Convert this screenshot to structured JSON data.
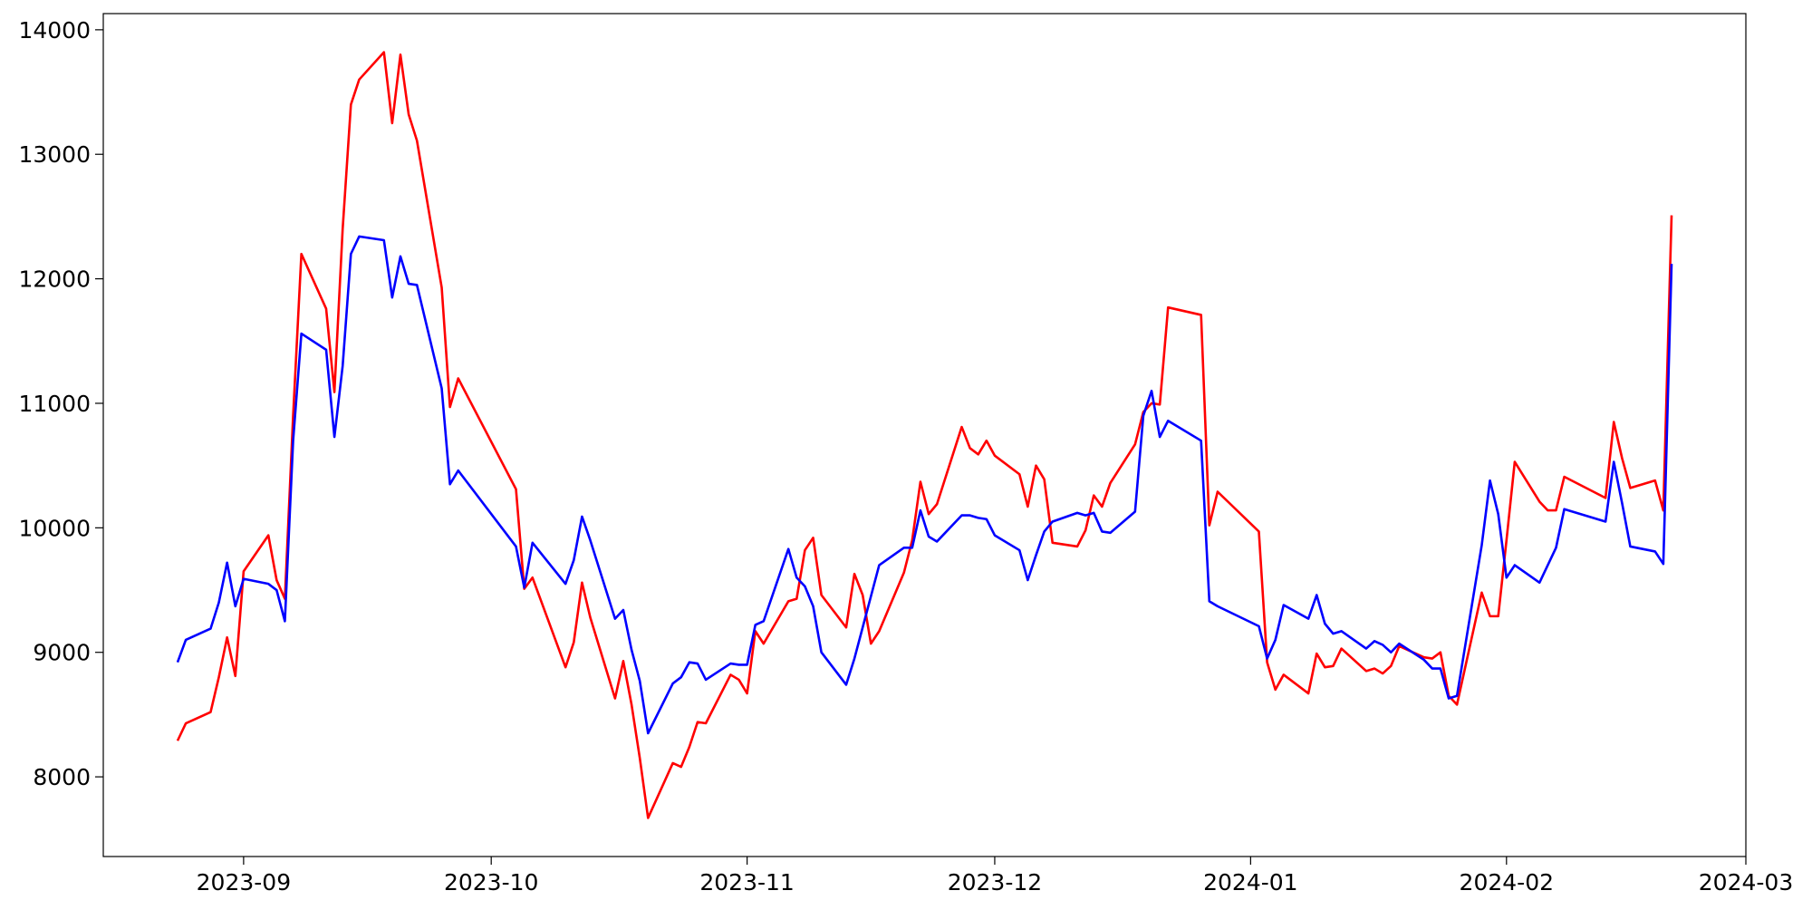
{
  "chart_data": {
    "type": "line",
    "x": [
      "2023-08-24",
      "2023-08-25",
      "2023-08-28",
      "2023-08-29",
      "2023-08-30",
      "2023-08-31",
      "2023-09-01",
      "2023-09-04",
      "2023-09-05",
      "2023-09-06",
      "2023-09-07",
      "2023-09-08",
      "2023-09-11",
      "2023-09-12",
      "2023-09-13",
      "2023-09-14",
      "2023-09-15",
      "2023-09-18",
      "2023-09-19",
      "2023-09-20",
      "2023-09-21",
      "2023-09-22",
      "2023-09-25",
      "2023-09-26",
      "2023-09-27",
      "2023-10-04",
      "2023-10-05",
      "2023-10-06",
      "2023-10-10",
      "2023-10-11",
      "2023-10-12",
      "2023-10-13",
      "2023-10-16",
      "2023-10-17",
      "2023-10-18",
      "2023-10-19",
      "2023-10-20",
      "2023-10-23",
      "2023-10-24",
      "2023-10-25",
      "2023-10-26",
      "2023-10-27",
      "2023-10-30",
      "2023-10-31",
      "2023-11-01",
      "2023-11-02",
      "2023-11-03",
      "2023-11-06",
      "2023-11-07",
      "2023-11-08",
      "2023-11-09",
      "2023-11-10",
      "2023-11-13",
      "2023-11-14",
      "2023-11-15",
      "2023-11-16",
      "2023-11-17",
      "2023-11-20",
      "2023-11-21",
      "2023-11-22",
      "2023-11-23",
      "2023-11-24",
      "2023-11-27",
      "2023-11-28",
      "2023-11-29",
      "2023-11-30",
      "2023-12-01",
      "2023-12-04",
      "2023-12-05",
      "2023-12-06",
      "2023-12-07",
      "2023-12-08",
      "2023-12-11",
      "2023-12-12",
      "2023-12-13",
      "2023-12-14",
      "2023-12-15",
      "2023-12-18",
      "2023-12-19",
      "2023-12-20",
      "2023-12-21",
      "2023-12-22",
      "2023-12-26",
      "2023-12-27",
      "2023-12-28",
      "2024-01-02",
      "2024-01-03",
      "2024-01-04",
      "2024-01-05",
      "2024-01-08",
      "2024-01-09",
      "2024-01-10",
      "2024-01-11",
      "2024-01-12",
      "2024-01-15",
      "2024-01-16",
      "2024-01-17",
      "2024-01-18",
      "2024-01-19",
      "2024-01-22",
      "2024-01-23",
      "2024-01-24",
      "2024-01-25",
      "2024-01-26",
      "2024-01-29",
      "2024-01-30",
      "2024-01-31",
      "2024-02-01",
      "2024-02-02",
      "2024-02-05",
      "2024-02-06",
      "2024-02-07",
      "2024-02-08",
      "2024-02-13",
      "2024-02-14",
      "2024-02-15",
      "2024-02-16",
      "2024-02-19",
      "2024-02-20",
      "2024-02-21"
    ],
    "series": [
      {
        "color": "#ff0000",
        "values": [
          8290,
          8430,
          8520,
          8800,
          9120,
          8810,
          9650,
          9940,
          9580,
          9430,
          10900,
          12200,
          11760,
          11090,
          12400,
          13400,
          13600,
          13820,
          13250,
          13800,
          13320,
          13110,
          11930,
          10970,
          11200,
          10310,
          9510,
          9600,
          8880,
          9080,
          9560,
          9280,
          8630,
          8930,
          8580,
          8150,
          7670,
          8110,
          8080,
          8240,
          8440,
          8430,
          8820,
          8780,
          8670,
          9170,
          9070,
          9410,
          9430,
          9820,
          9920,
          9460,
          9200,
          9630,
          9460,
          9070,
          9170,
          9640,
          9900,
          10370,
          10110,
          10190,
          10810,
          10640,
          10590,
          10700,
          10580,
          10430,
          10170,
          10500,
          10390,
          9880,
          9850,
          9980,
          10260,
          10170,
          10360,
          10670,
          10930,
          11000,
          10990,
          11770,
          11710,
          10020,
          10290,
          9970,
          8920,
          8700,
          8820,
          8670,
          8990,
          8880,
          8890,
          9030,
          8850,
          8870,
          8830,
          8890,
          9050,
          8960,
          8950,
          9000,
          8650,
          8580,
          9480,
          9290,
          9290,
          9900,
          10530,
          10210,
          10140,
          10140,
          10410,
          10240,
          10850,
          10560,
          10320,
          10380,
          10140,
          12510
        ]
      },
      {
        "color": "#0000ff",
        "values": [
          8920,
          9100,
          9190,
          9400,
          9720,
          9370,
          9590,
          9550,
          9500,
          9250,
          10700,
          11560,
          11430,
          10730,
          11300,
          12200,
          12340,
          12310,
          11850,
          12180,
          11960,
          11950,
          11120,
          10350,
          10460,
          9850,
          9520,
          9880,
          9550,
          9740,
          10090,
          9900,
          9270,
          9340,
          9020,
          8770,
          8350,
          8750,
          8800,
          8920,
          8910,
          8780,
          8910,
          8900,
          8900,
          9220,
          9250,
          9830,
          9600,
          9530,
          9370,
          9000,
          8740,
          8950,
          9200,
          9450,
          9700,
          9840,
          9840,
          10140,
          9930,
          9890,
          10100,
          10100,
          10080,
          10070,
          9940,
          9820,
          9580,
          9780,
          9970,
          10050,
          10120,
          10100,
          10120,
          9970,
          9960,
          10130,
          10900,
          11100,
          10730,
          10860,
          10700,
          9410,
          9370,
          9210,
          8950,
          9100,
          9380,
          9270,
          9460,
          9230,
          9150,
          9170,
          9030,
          9090,
          9060,
          9000,
          9070,
          8940,
          8870,
          8870,
          8630,
          8650,
          9860,
          10380,
          10110,
          9600,
          9700,
          9560,
          9700,
          9840,
          10150,
          10050,
          10530,
          10200,
          9850,
          9810,
          9710,
          12120
        ]
      }
    ],
    "xlim": [
      "2023-08-15",
      "2024-03-01"
    ],
    "xticks": [
      {
        "value": "2023-09-01",
        "label": "2023-09"
      },
      {
        "value": "2023-10-01",
        "label": "2023-10"
      },
      {
        "value": "2023-11-01",
        "label": "2023-11"
      },
      {
        "value": "2023-12-01",
        "label": "2023-12"
      },
      {
        "value": "2024-01-01",
        "label": "2024-01"
      },
      {
        "value": "2024-02-01",
        "label": "2024-02"
      },
      {
        "value": "2024-03-01",
        "label": "2024-03"
      }
    ],
    "ylim": [
      7360,
      14130
    ],
    "yticks": [
      8000,
      9000,
      10000,
      11000,
      12000,
      13000,
      14000
    ],
    "grid": false
  }
}
